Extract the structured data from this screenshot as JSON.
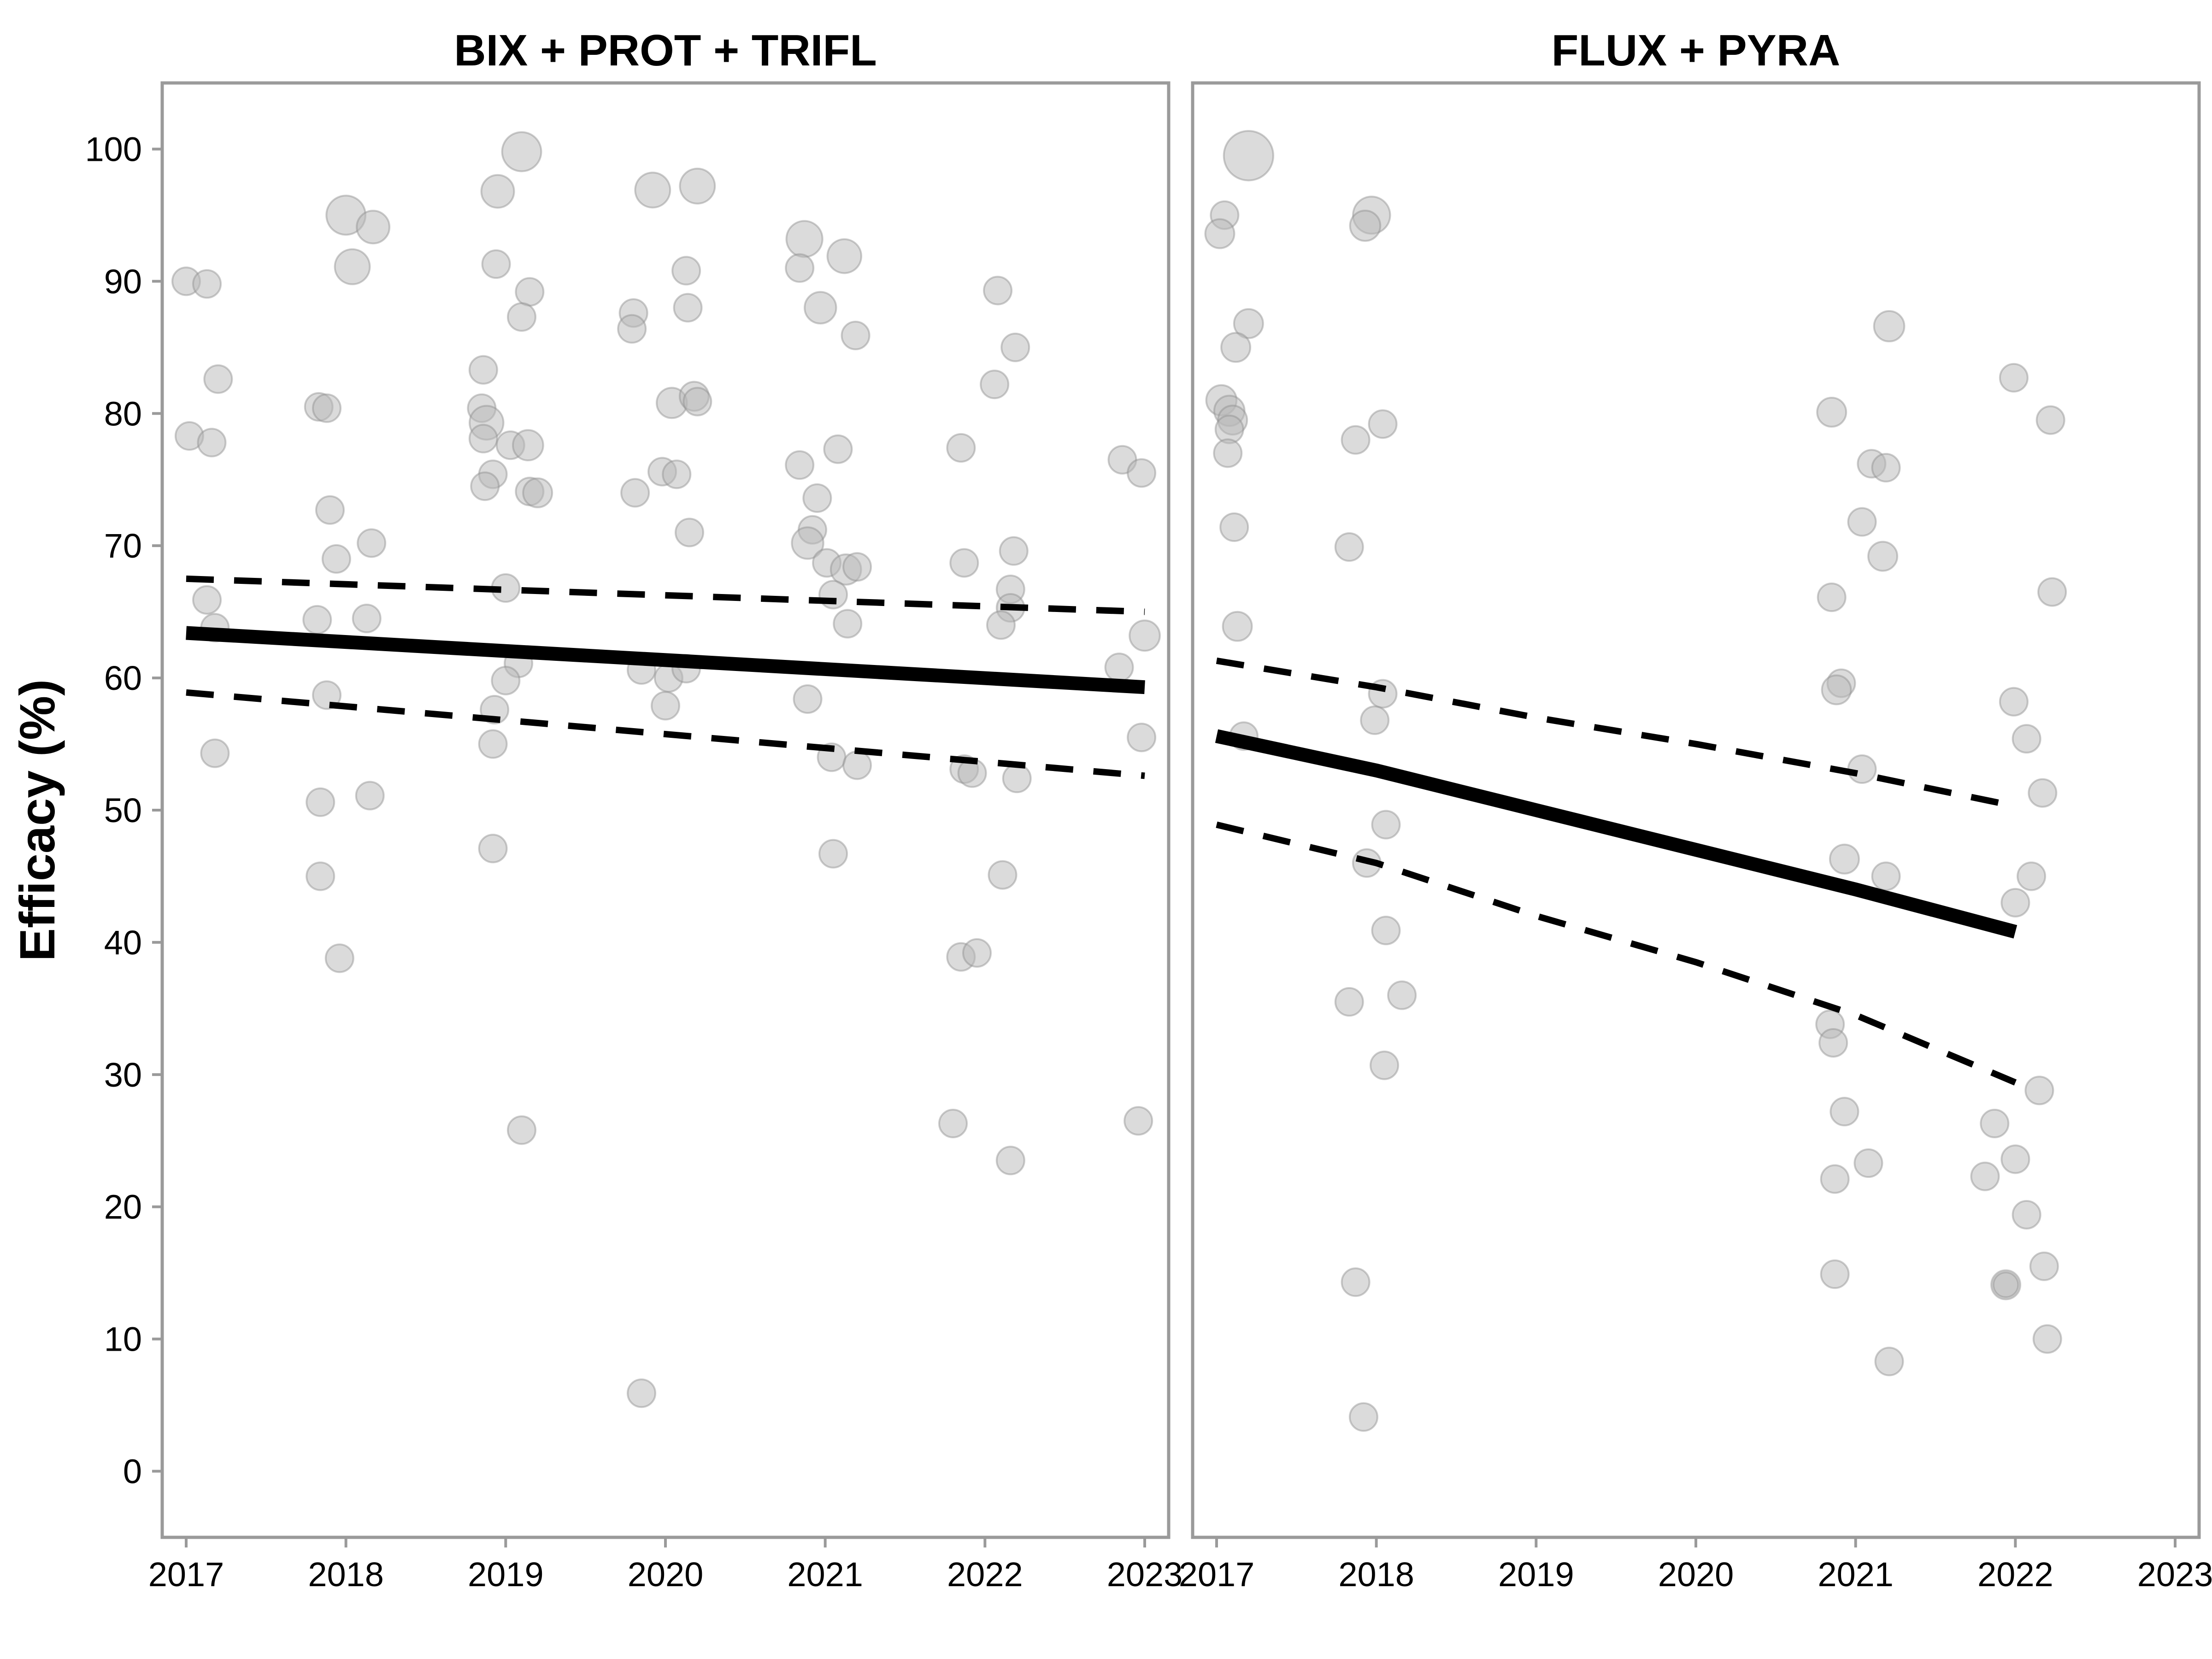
{
  "chart_data": {
    "type": "scatter",
    "ylabel": "Efficacy (%)",
    "xlabel": "",
    "ylim": [
      -5,
      105
    ],
    "yticks": [
      0,
      10,
      20,
      30,
      40,
      50,
      60,
      70,
      80,
      90,
      100
    ],
    "xlim": [
      2016.85,
      2023.15
    ],
    "xticks": [
      "2017",
      "2018",
      "2019",
      "2020",
      "2021",
      "2022",
      "2023"
    ],
    "grid": false,
    "legend": "none",
    "colors": {
      "points": "#b8b8b8",
      "fit": "#000000",
      "frame": "#9a9a9a"
    },
    "panels": [
      {
        "title": "BIX + PROT + TRIFL",
        "fit": {
          "x": [
            2017.0,
            2023.0
          ],
          "y": [
            63.4,
            59.3
          ]
        },
        "ci_upper": {
          "x": [
            2017.0,
            2023.0
          ],
          "y": [
            67.5,
            65.0
          ]
        },
        "ci_lower": {
          "x": [
            2017.0,
            2023.0
          ],
          "y": [
            58.9,
            52.6
          ]
        },
        "points": [
          {
            "x": 2017.0,
            "y": 90.0,
            "s": 1
          },
          {
            "x": 2017.13,
            "y": 89.8,
            "s": 1
          },
          {
            "x": 2017.02,
            "y": 78.3,
            "s": 1
          },
          {
            "x": 2017.16,
            "y": 77.8,
            "s": 1
          },
          {
            "x": 2017.2,
            "y": 82.6,
            "s": 1
          },
          {
            "x": 2017.13,
            "y": 65.9,
            "s": 1
          },
          {
            "x": 2017.18,
            "y": 63.8,
            "s": 1
          },
          {
            "x": 2017.18,
            "y": 54.3,
            "s": 1
          },
          {
            "x": 2018.0,
            "y": 95.0,
            "s": 2
          },
          {
            "x": 2018.17,
            "y": 94.1,
            "s": 1.4
          },
          {
            "x": 2018.04,
            "y": 91.1,
            "s": 1.6
          },
          {
            "x": 2017.83,
            "y": 80.5,
            "s": 1
          },
          {
            "x": 2017.88,
            "y": 80.4,
            "s": 1
          },
          {
            "x": 2017.9,
            "y": 72.7,
            "s": 1
          },
          {
            "x": 2017.94,
            "y": 69.0,
            "s": 1
          },
          {
            "x": 2018.16,
            "y": 70.2,
            "s": 1
          },
          {
            "x": 2017.82,
            "y": 64.4,
            "s": 1
          },
          {
            "x": 2018.13,
            "y": 64.5,
            "s": 1
          },
          {
            "x": 2017.88,
            "y": 58.7,
            "s": 1
          },
          {
            "x": 2017.84,
            "y": 50.6,
            "s": 1
          },
          {
            "x": 2018.15,
            "y": 51.1,
            "s": 1
          },
          {
            "x": 2017.84,
            "y": 45.0,
            "s": 1
          },
          {
            "x": 2017.96,
            "y": 38.8,
            "s": 1
          },
          {
            "x": 2019.1,
            "y": 99.8,
            "s": 2
          },
          {
            "x": 2018.95,
            "y": 96.8,
            "s": 1.4
          },
          {
            "x": 2018.94,
            "y": 91.3,
            "s": 1
          },
          {
            "x": 2019.15,
            "y": 89.2,
            "s": 1
          },
          {
            "x": 2019.1,
            "y": 87.3,
            "s": 1
          },
          {
            "x": 2018.86,
            "y": 83.3,
            "s": 1
          },
          {
            "x": 2018.85,
            "y": 80.4,
            "s": 1
          },
          {
            "x": 2018.88,
            "y": 79.3,
            "s": 1.5
          },
          {
            "x": 2018.86,
            "y": 78.1,
            "s": 1
          },
          {
            "x": 2019.03,
            "y": 77.6,
            "s": 1
          },
          {
            "x": 2019.14,
            "y": 77.6,
            "s": 1.2
          },
          {
            "x": 2018.92,
            "y": 75.4,
            "s": 1
          },
          {
            "x": 2018.87,
            "y": 74.5,
            "s": 1
          },
          {
            "x": 2019.15,
            "y": 74.1,
            "s": 1
          },
          {
            "x": 2019.2,
            "y": 74.0,
            "s": 1.1
          },
          {
            "x": 2019.0,
            "y": 66.8,
            "s": 1
          },
          {
            "x": 2019.08,
            "y": 61.1,
            "s": 1
          },
          {
            "x": 2019.0,
            "y": 59.8,
            "s": 1
          },
          {
            "x": 2018.93,
            "y": 57.6,
            "s": 1
          },
          {
            "x": 2018.92,
            "y": 55.0,
            "s": 1
          },
          {
            "x": 2018.92,
            "y": 47.1,
            "s": 1
          },
          {
            "x": 2019.1,
            "y": 25.8,
            "s": 1
          },
          {
            "x": 2019.92,
            "y": 96.9,
            "s": 1.6
          },
          {
            "x": 2020.2,
            "y": 97.2,
            "s": 1.6
          },
          {
            "x": 2020.13,
            "y": 90.8,
            "s": 1
          },
          {
            "x": 2019.8,
            "y": 87.6,
            "s": 1
          },
          {
            "x": 2020.14,
            "y": 88.0,
            "s": 1
          },
          {
            "x": 2019.79,
            "y": 86.4,
            "s": 1
          },
          {
            "x": 2020.04,
            "y": 80.8,
            "s": 1.2
          },
          {
            "x": 2020.18,
            "y": 81.3,
            "s": 1.1
          },
          {
            "x": 2020.2,
            "y": 80.9,
            "s": 1
          },
          {
            "x": 2019.98,
            "y": 75.6,
            "s": 1
          },
          {
            "x": 2020.07,
            "y": 75.4,
            "s": 1
          },
          {
            "x": 2019.81,
            "y": 74.0,
            "s": 1
          },
          {
            "x": 2020.15,
            "y": 71.0,
            "s": 1
          },
          {
            "x": 2019.85,
            "y": 60.6,
            "s": 1
          },
          {
            "x": 2020.02,
            "y": 60.0,
            "s": 1
          },
          {
            "x": 2020.13,
            "y": 60.7,
            "s": 1
          },
          {
            "x": 2020.0,
            "y": 57.9,
            "s": 1
          },
          {
            "x": 2019.85,
            "y": 5.9,
            "s": 1
          },
          {
            "x": 2020.87,
            "y": 93.2,
            "s": 1.7
          },
          {
            "x": 2021.12,
            "y": 91.9,
            "s": 1.5
          },
          {
            "x": 2020.84,
            "y": 91.0,
            "s": 1
          },
          {
            "x": 2020.97,
            "y": 88.0,
            "s": 1.3
          },
          {
            "x": 2021.19,
            "y": 85.9,
            "s": 1
          },
          {
            "x": 2020.84,
            "y": 76.1,
            "s": 1
          },
          {
            "x": 2021.08,
            "y": 77.3,
            "s": 1
          },
          {
            "x": 2020.95,
            "y": 73.6,
            "s": 1
          },
          {
            "x": 2020.92,
            "y": 71.2,
            "s": 1
          },
          {
            "x": 2020.89,
            "y": 70.2,
            "s": 1.3
          },
          {
            "x": 2021.01,
            "y": 68.7,
            "s": 1
          },
          {
            "x": 2021.13,
            "y": 68.2,
            "s": 1.2
          },
          {
            "x": 2021.2,
            "y": 68.4,
            "s": 1
          },
          {
            "x": 2021.05,
            "y": 66.3,
            "s": 1
          },
          {
            "x": 2021.14,
            "y": 64.1,
            "s": 1
          },
          {
            "x": 2020.89,
            "y": 58.4,
            "s": 1
          },
          {
            "x": 2021.04,
            "y": 54.0,
            "s": 1
          },
          {
            "x": 2021.2,
            "y": 53.4,
            "s": 1
          },
          {
            "x": 2021.05,
            "y": 46.7,
            "s": 1
          },
          {
            "x": 2022.08,
            "y": 89.3,
            "s": 1
          },
          {
            "x": 2022.19,
            "y": 85.0,
            "s": 1
          },
          {
            "x": 2022.06,
            "y": 82.2,
            "s": 1
          },
          {
            "x": 2021.85,
            "y": 77.4,
            "s": 1
          },
          {
            "x": 2021.87,
            "y": 68.7,
            "s": 1
          },
          {
            "x": 2022.18,
            "y": 69.6,
            "s": 1
          },
          {
            "x": 2022.16,
            "y": 66.7,
            "s": 1
          },
          {
            "x": 2022.16,
            "y": 65.3,
            "s": 1
          },
          {
            "x": 2022.1,
            "y": 64.0,
            "s": 1
          },
          {
            "x": 2021.87,
            "y": 53.1,
            "s": 1
          },
          {
            "x": 2021.92,
            "y": 52.8,
            "s": 1
          },
          {
            "x": 2022.2,
            "y": 52.4,
            "s": 1
          },
          {
            "x": 2022.11,
            "y": 45.1,
            "s": 1
          },
          {
            "x": 2021.85,
            "y": 38.9,
            "s": 1
          },
          {
            "x": 2021.95,
            "y": 39.2,
            "s": 1
          },
          {
            "x": 2021.8,
            "y": 26.3,
            "s": 1
          },
          {
            "x": 2022.16,
            "y": 23.5,
            "s": 1
          },
          {
            "x": 2022.86,
            "y": 76.5,
            "s": 1
          },
          {
            "x": 2022.98,
            "y": 75.5,
            "s": 1
          },
          {
            "x": 2023.0,
            "y": 63.2,
            "s": 1.2
          },
          {
            "x": 2022.84,
            "y": 60.8,
            "s": 1
          },
          {
            "x": 2022.98,
            "y": 55.5,
            "s": 1
          },
          {
            "x": 2022.96,
            "y": 26.5,
            "s": 1
          }
        ]
      },
      {
        "title": "FLUX + PYRA",
        "fit": {
          "x": [
            2017.0,
            2018.0,
            2019.0,
            2020.0,
            2021.0,
            2022.0
          ],
          "y": [
            55.6,
            53.0,
            50.0,
            47.0,
            44.0,
            40.8
          ]
        },
        "ci_upper": {
          "x": [
            2017.0,
            2018.0,
            2019.0,
            2020.0,
            2021.0,
            2022.0
          ],
          "y": [
            61.3,
            59.3,
            57.0,
            55.0,
            52.8,
            50.3
          ]
        },
        "ci_lower": {
          "x": [
            2017.0,
            2018.0,
            2019.0,
            2020.0,
            2021.0,
            2022.0
          ],
          "y": [
            48.9,
            46.0,
            42.0,
            38.5,
            34.5,
            29.4
          ]
        },
        "points": [
          {
            "x": 2017.2,
            "y": 99.5,
            "s": 3.2
          },
          {
            "x": 2017.05,
            "y": 95.0,
            "s": 1
          },
          {
            "x": 2017.02,
            "y": 93.6,
            "s": 1.1
          },
          {
            "x": 2017.2,
            "y": 86.8,
            "s": 1.1
          },
          {
            "x": 2017.12,
            "y": 85.0,
            "s": 1.1
          },
          {
            "x": 2017.03,
            "y": 81.0,
            "s": 1.2
          },
          {
            "x": 2017.08,
            "y": 80.2,
            "s": 1.2
          },
          {
            "x": 2017.1,
            "y": 79.5,
            "s": 1.1
          },
          {
            "x": 2017.08,
            "y": 78.8,
            "s": 1
          },
          {
            "x": 2017.07,
            "y": 77.0,
            "s": 1
          },
          {
            "x": 2017.11,
            "y": 71.4,
            "s": 1
          },
          {
            "x": 2017.13,
            "y": 63.9,
            "s": 1.1
          },
          {
            "x": 2017.17,
            "y": 55.6,
            "s": 1
          },
          {
            "x": 2017.97,
            "y": 95.0,
            "s": 1.8
          },
          {
            "x": 2017.93,
            "y": 94.2,
            "s": 1.2
          },
          {
            "x": 2018.04,
            "y": 79.2,
            "s": 1
          },
          {
            "x": 2017.87,
            "y": 78.0,
            "s": 1
          },
          {
            "x": 2017.83,
            "y": 69.9,
            "s": 1
          },
          {
            "x": 2018.04,
            "y": 58.8,
            "s": 1
          },
          {
            "x": 2017.99,
            "y": 56.8,
            "s": 1
          },
          {
            "x": 2018.06,
            "y": 48.9,
            "s": 1
          },
          {
            "x": 2017.94,
            "y": 46.0,
            "s": 1
          },
          {
            "x": 2018.06,
            "y": 40.9,
            "s": 1
          },
          {
            "x": 2018.16,
            "y": 36.0,
            "s": 1
          },
          {
            "x": 2017.83,
            "y": 35.5,
            "s": 1
          },
          {
            "x": 2018.05,
            "y": 30.7,
            "s": 1
          },
          {
            "x": 2017.87,
            "y": 14.3,
            "s": 1
          },
          {
            "x": 2017.92,
            "y": 4.1,
            "s": 1
          },
          {
            "x": 2021.21,
            "y": 86.6,
            "s": 1.2
          },
          {
            "x": 2020.85,
            "y": 80.1,
            "s": 1.1
          },
          {
            "x": 2021.1,
            "y": 76.2,
            "s": 1
          },
          {
            "x": 2021.19,
            "y": 75.9,
            "s": 1
          },
          {
            "x": 2021.04,
            "y": 71.8,
            "s": 1
          },
          {
            "x": 2021.17,
            "y": 69.2,
            "s": 1.1
          },
          {
            "x": 2020.85,
            "y": 66.1,
            "s": 1
          },
          {
            "x": 2020.91,
            "y": 59.6,
            "s": 1
          },
          {
            "x": 2020.88,
            "y": 59.1,
            "s": 1.1
          },
          {
            "x": 2021.04,
            "y": 53.1,
            "s": 1
          },
          {
            "x": 2020.93,
            "y": 46.3,
            "s": 1.1
          },
          {
            "x": 2021.19,
            "y": 45.0,
            "s": 1
          },
          {
            "x": 2020.84,
            "y": 33.8,
            "s": 1
          },
          {
            "x": 2020.86,
            "y": 32.4,
            "s": 1
          },
          {
            "x": 2020.93,
            "y": 27.2,
            "s": 1
          },
          {
            "x": 2021.08,
            "y": 23.3,
            "s": 1
          },
          {
            "x": 2020.87,
            "y": 22.1,
            "s": 1
          },
          {
            "x": 2020.87,
            "y": 14.9,
            "s": 1
          },
          {
            "x": 2021.21,
            "y": 8.3,
            "s": 1
          },
          {
            "x": 2021.99,
            "y": 82.7,
            "s": 1
          },
          {
            "x": 2022.22,
            "y": 79.5,
            "s": 1
          },
          {
            "x": 2022.23,
            "y": 66.5,
            "s": 1
          },
          {
            "x": 2021.99,
            "y": 58.2,
            "s": 1
          },
          {
            "x": 2022.07,
            "y": 55.4,
            "s": 1
          },
          {
            "x": 2022.17,
            "y": 51.3,
            "s": 1
          },
          {
            "x": 2022.1,
            "y": 45.0,
            "s": 1
          },
          {
            "x": 2022.0,
            "y": 43.0,
            "s": 1
          },
          {
            "x": 2022.15,
            "y": 28.8,
            "s": 1
          },
          {
            "x": 2021.87,
            "y": 26.3,
            "s": 1
          },
          {
            "x": 2022.0,
            "y": 23.6,
            "s": 1
          },
          {
            "x": 2021.81,
            "y": 22.3,
            "s": 1
          },
          {
            "x": 2022.07,
            "y": 19.4,
            "s": 1
          },
          {
            "x": 2022.18,
            "y": 15.5,
            "s": 1
          },
          {
            "x": 2021.94,
            "y": 14.1,
            "s": 1.1
          },
          {
            "x": 2021.94,
            "y": 14.1,
            "s": 0.8
          },
          {
            "x": 2022.2,
            "y": 10.0,
            "s": 1
          }
        ]
      }
    ]
  }
}
